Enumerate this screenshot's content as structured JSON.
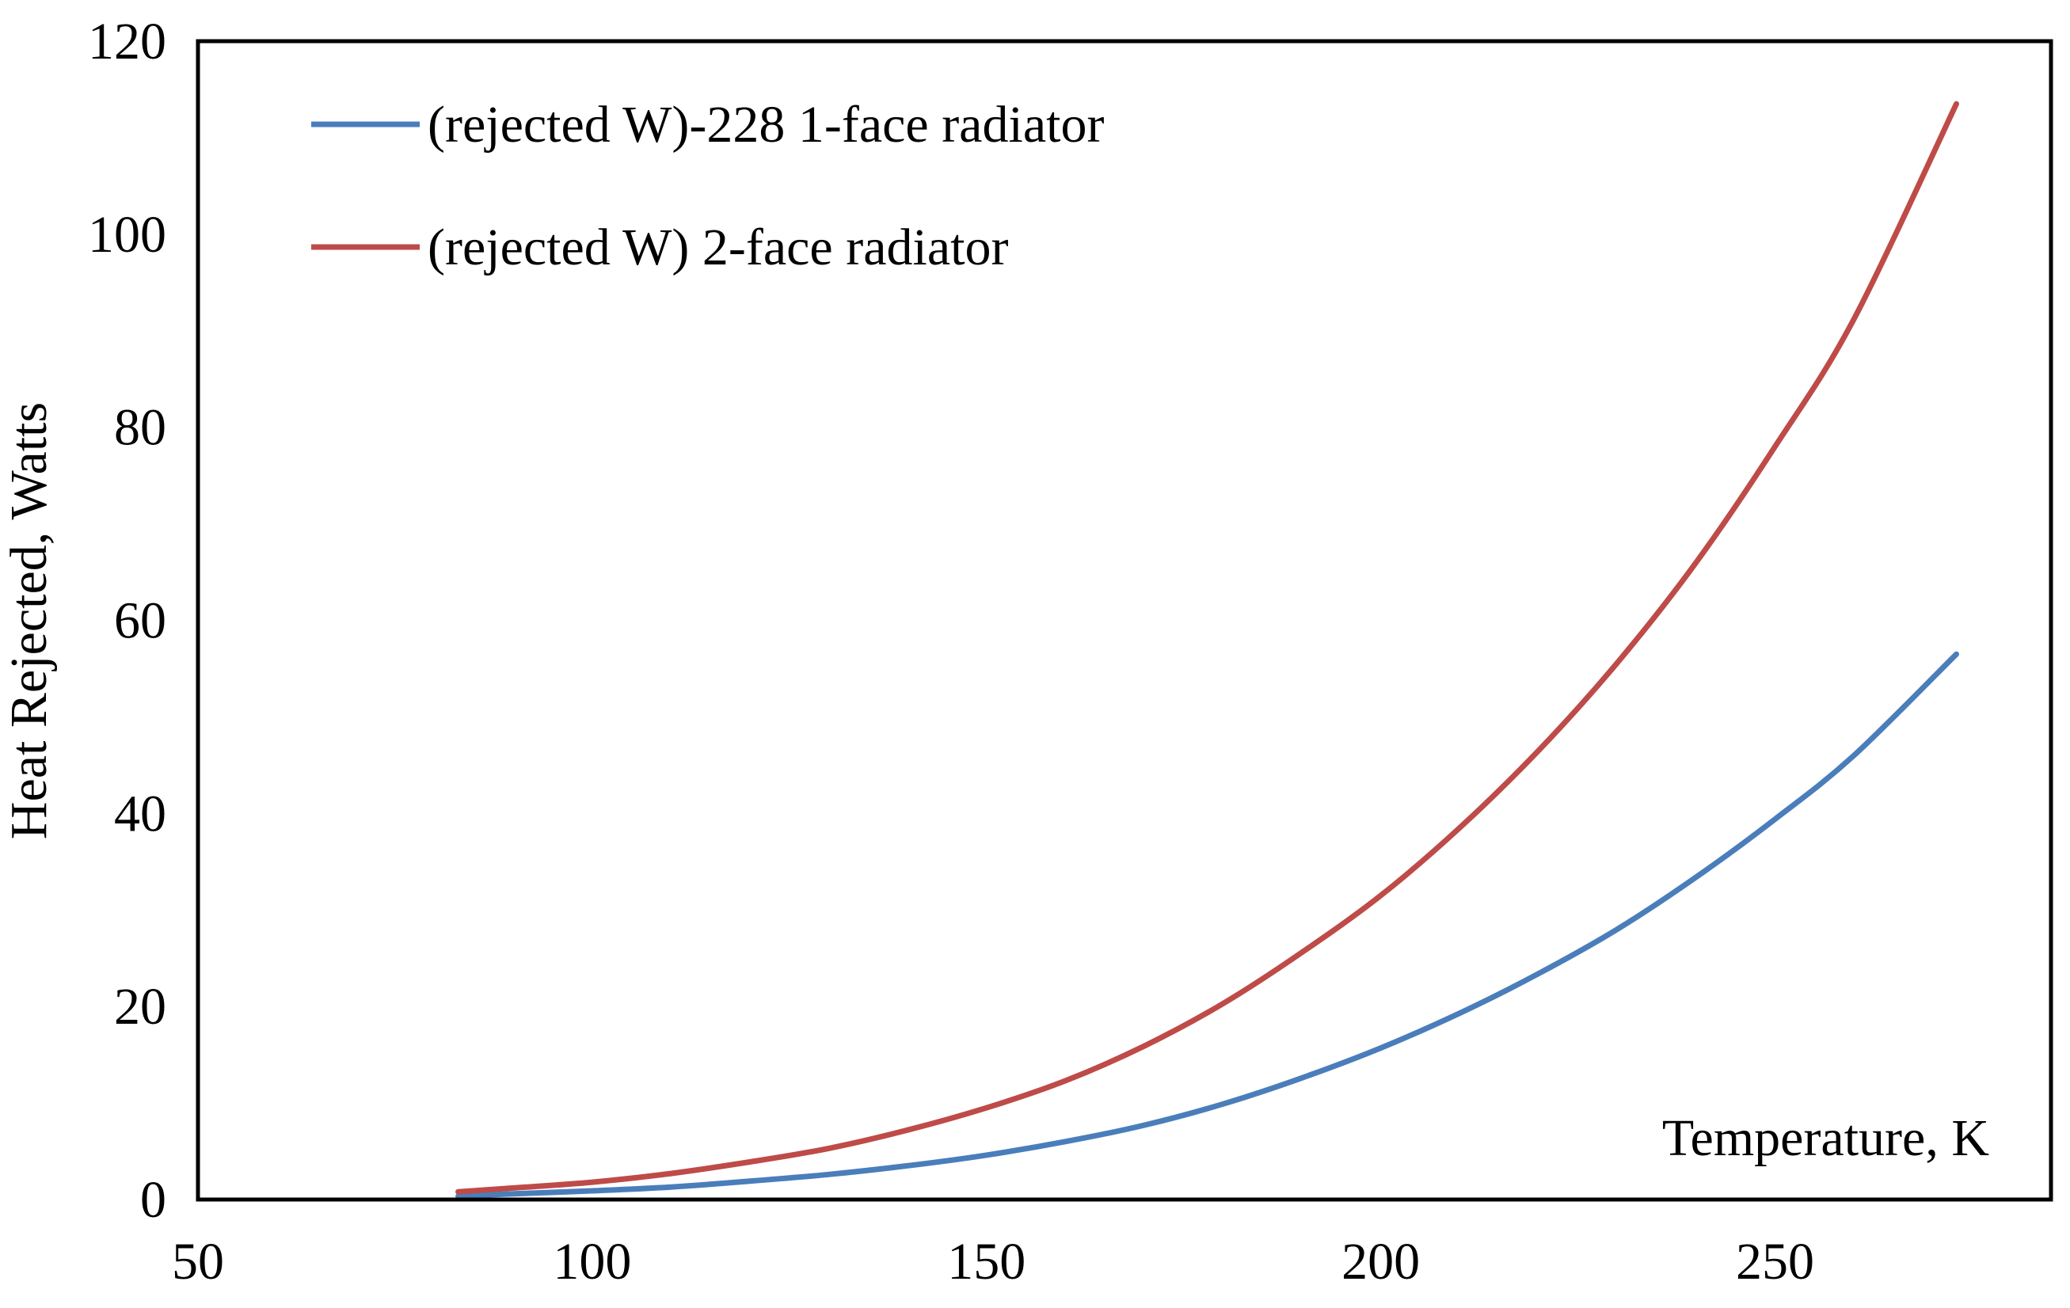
{
  "chart_data": {
    "type": "line",
    "title": "",
    "xlabel": "Temperature, K",
    "ylabel": "Heat Rejected,  Watts",
    "xlim": [
      50,
      285
    ],
    "ylim": [
      0,
      120
    ],
    "xticks": [
      50,
      100,
      150,
      200,
      250
    ],
    "yticks": [
      0,
      20,
      40,
      60,
      80,
      100,
      120
    ],
    "xtick_labels": [
      "50",
      "100",
      "150",
      "200",
      "250"
    ],
    "ytick_labels": [
      "0",
      "20",
      "40",
      "60",
      "80",
      "100",
      "120"
    ],
    "grid": false,
    "legend_position": "top-left",
    "series": [
      {
        "name": "(rejected W)-228 1-face radiator",
        "color": "#4a7ebb",
        "x": [
          83,
          90,
          100,
          110,
          120,
          130,
          140,
          150,
          160,
          170,
          180,
          190,
          200,
          210,
          220,
          230,
          240,
          250,
          260,
          273
        ],
        "y": [
          0.35,
          0.6,
          0.9,
          1.3,
          1.9,
          2.6,
          3.5,
          4.6,
          6.0,
          7.7,
          9.9,
          12.6,
          15.7,
          19.3,
          23.4,
          28.0,
          33.4,
          39.4,
          46.0,
          56.5
        ]
      },
      {
        "name": "(rejected W) 2-face radiator",
        "color": "#be4b48",
        "x": [
          83,
          90,
          100,
          110,
          120,
          130,
          140,
          150,
          160,
          170,
          180,
          190,
          200,
          210,
          220,
          230,
          240,
          250,
          260,
          273
        ],
        "y": [
          0.8,
          1.2,
          1.8,
          2.7,
          3.9,
          5.3,
          7.2,
          9.5,
          12.3,
          15.9,
          20.3,
          25.6,
          31.5,
          38.5,
          46.5,
          55.6,
          66.0,
          78.0,
          91.2,
          113.5
        ]
      }
    ]
  }
}
